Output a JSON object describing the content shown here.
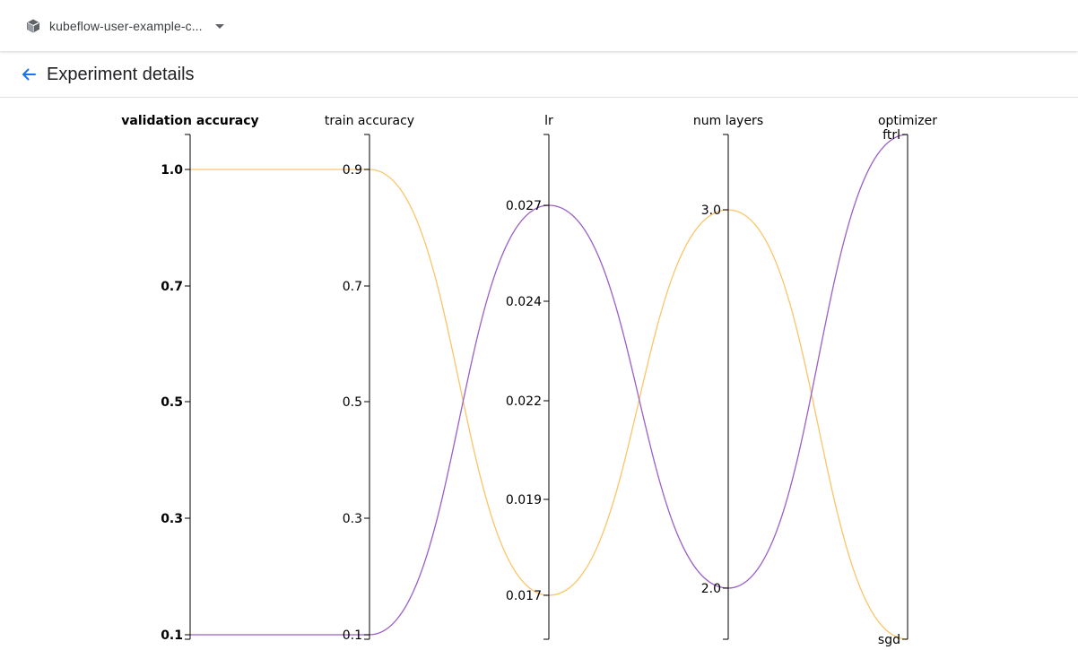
{
  "namespace": {
    "label": "kubeflow-user-example-c...",
    "icon": "cube-icon"
  },
  "header": {
    "title": "Experiment details",
    "back_icon": "arrow-back-icon"
  },
  "colors": {
    "accent": "#1a73e8",
    "trial_1": "#fcc469",
    "trial_2": "#9a5fc8"
  },
  "chart_data": {
    "type": "parallel-coordinates",
    "axes": [
      {
        "name": "validation accuracy",
        "ticks": [
          "1.0",
          "0.7",
          "0.5",
          "0.3",
          "0.1"
        ],
        "bold": true
      },
      {
        "name": "train accuracy",
        "ticks": [
          "0.9",
          "0.7",
          "0.5",
          "0.3",
          "0.1"
        ]
      },
      {
        "name": "lr",
        "ticks": [
          "0.027",
          "0.024",
          "0.022",
          "0.019",
          "0.017"
        ]
      },
      {
        "name": "num layers",
        "ticks": [
          "3.0",
          "2.0"
        ]
      },
      {
        "name": "optimizer",
        "ticks": [
          "ftrl",
          "sgd"
        ]
      }
    ],
    "series": [
      {
        "values": [
          "1.0",
          "0.9",
          "0.017",
          "3.0",
          "sgd"
        ],
        "color": "#fcc469"
      },
      {
        "values": [
          "0.1",
          "0.1",
          "0.027",
          "2.0",
          "ftrl"
        ],
        "color": "#9a5fc8"
      }
    ]
  }
}
